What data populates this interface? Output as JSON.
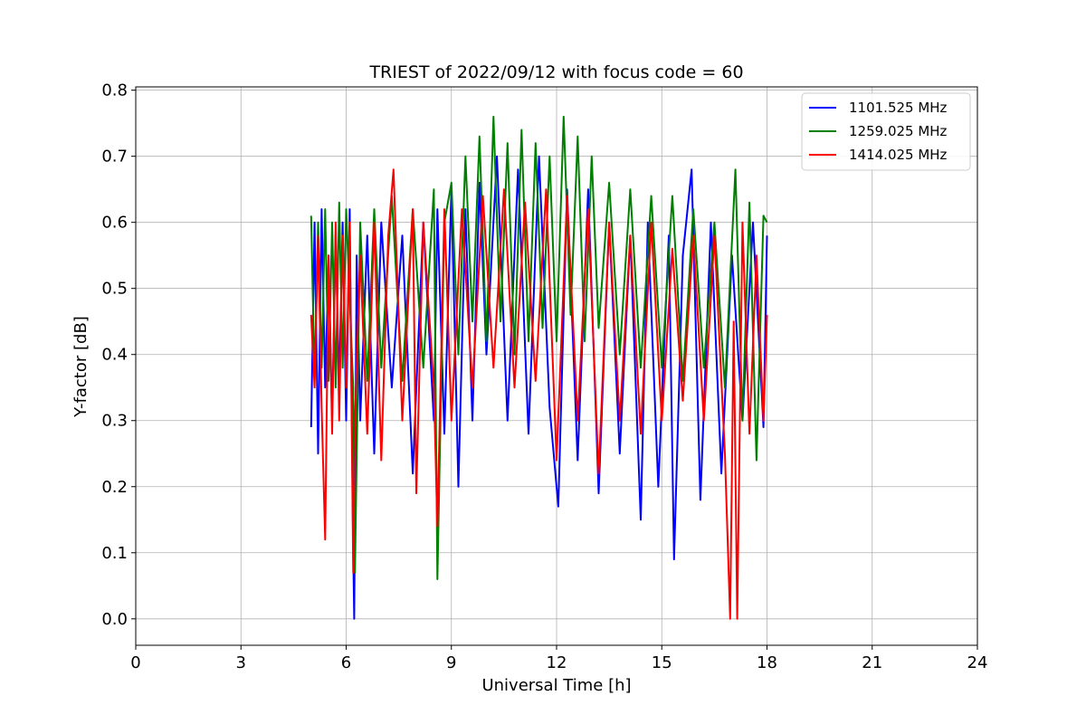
{
  "chart_data": {
    "type": "line",
    "title": "TRIEST of 2022/09/12 with focus code = 60",
    "xlabel": "Universal Time [h]",
    "ylabel": "Y-factor [dB]",
    "xlim": [
      0,
      24
    ],
    "ylim": [
      -0.04,
      0.805
    ],
    "xticks": [
      0,
      3,
      6,
      9,
      12,
      15,
      18,
      21,
      24
    ],
    "xtick_labels": [
      "0",
      "3",
      "6",
      "9",
      "12",
      "15",
      "18",
      "21",
      "24"
    ],
    "yticks": [
      0.0,
      0.1,
      0.2,
      0.3,
      0.4,
      0.5,
      0.6,
      0.7,
      0.8
    ],
    "ytick_labels": [
      "0.0",
      "0.1",
      "0.2",
      "0.3",
      "0.4",
      "0.5",
      "0.6",
      "0.7",
      "0.8"
    ],
    "grid": true,
    "legend_position": "top-right",
    "series": [
      {
        "name": "1101.525 MHz",
        "color": "#0000ff",
        "x": [
          5.0,
          5.1,
          5.2,
          5.3,
          5.4,
          5.5,
          5.6,
          5.7,
          5.8,
          5.9,
          6.0,
          6.1,
          6.2,
          6.23,
          6.3,
          6.4,
          6.6,
          6.8,
          7.0,
          7.3,
          7.6,
          7.9,
          8.2,
          8.5,
          8.6,
          8.8,
          9.0,
          9.2,
          9.4,
          9.6,
          9.8,
          10.0,
          10.3,
          10.6,
          10.9,
          11.2,
          11.5,
          11.8,
          12.05,
          12.3,
          12.6,
          12.9,
          13.2,
          13.5,
          13.8,
          14.1,
          14.4,
          14.6,
          14.9,
          15.2,
          15.35,
          15.6,
          15.85,
          16.1,
          16.4,
          16.7,
          17.0,
          17.3,
          17.6,
          17.9,
          18.0
        ],
        "y": [
          0.29,
          0.6,
          0.25,
          0.62,
          0.35,
          0.55,
          0.3,
          0.58,
          0.35,
          0.6,
          0.3,
          0.62,
          0.1,
          0.0,
          0.55,
          0.3,
          0.58,
          0.25,
          0.6,
          0.35,
          0.58,
          0.22,
          0.6,
          0.3,
          0.62,
          0.28,
          0.65,
          0.2,
          0.62,
          0.3,
          0.66,
          0.4,
          0.7,
          0.3,
          0.68,
          0.28,
          0.7,
          0.32,
          0.17,
          0.65,
          0.24,
          0.65,
          0.19,
          0.6,
          0.25,
          0.58,
          0.15,
          0.6,
          0.2,
          0.58,
          0.09,
          0.55,
          0.68,
          0.18,
          0.6,
          0.22,
          0.55,
          0.3,
          0.6,
          0.29,
          0.58
        ]
      },
      {
        "name": "1259.025 MHz",
        "color": "#008000",
        "x": [
          5.0,
          5.1,
          5.2,
          5.3,
          5.4,
          5.5,
          5.6,
          5.7,
          5.8,
          5.9,
          6.0,
          6.2,
          6.25,
          6.4,
          6.6,
          6.8,
          7.0,
          7.3,
          7.6,
          7.9,
          8.2,
          8.5,
          8.6,
          8.8,
          9.0,
          9.2,
          9.4,
          9.6,
          9.8,
          10.0,
          10.2,
          10.4,
          10.6,
          10.8,
          11.0,
          11.2,
          11.4,
          11.6,
          11.8,
          12.0,
          12.2,
          12.4,
          12.6,
          12.8,
          13.0,
          13.2,
          13.5,
          13.8,
          14.1,
          14.4,
          14.7,
          15.0,
          15.3,
          15.6,
          15.9,
          16.2,
          16.5,
          16.8,
          17.1,
          17.3,
          17.5,
          17.7,
          17.9,
          18.0
        ],
        "y": [
          0.61,
          0.36,
          0.6,
          0.38,
          0.62,
          0.36,
          0.6,
          0.35,
          0.63,
          0.38,
          0.62,
          0.35,
          0.07,
          0.6,
          0.36,
          0.62,
          0.38,
          0.64,
          0.36,
          0.62,
          0.38,
          0.65,
          0.06,
          0.6,
          0.66,
          0.4,
          0.7,
          0.45,
          0.73,
          0.42,
          0.76,
          0.45,
          0.72,
          0.4,
          0.74,
          0.42,
          0.72,
          0.44,
          0.7,
          0.42,
          0.76,
          0.46,
          0.73,
          0.42,
          0.7,
          0.44,
          0.66,
          0.4,
          0.65,
          0.38,
          0.64,
          0.38,
          0.64,
          0.36,
          0.62,
          0.38,
          0.6,
          0.35,
          0.68,
          0.3,
          0.63,
          0.24,
          0.61,
          0.6
        ]
      },
      {
        "name": "1414.025 MHz",
        "color": "#ff0000",
        "x": [
          5.0,
          5.1,
          5.2,
          5.3,
          5.4,
          5.5,
          5.6,
          5.7,
          5.8,
          5.9,
          6.0,
          6.1,
          6.2,
          6.25,
          6.4,
          6.6,
          6.8,
          7.0,
          7.2,
          7.35,
          7.6,
          7.9,
          8.0,
          8.2,
          8.5,
          8.6,
          8.8,
          9.0,
          9.3,
          9.6,
          9.9,
          10.2,
          10.5,
          10.8,
          11.1,
          11.4,
          11.7,
          12.0,
          12.3,
          12.6,
          12.9,
          13.2,
          13.5,
          13.8,
          14.1,
          14.4,
          14.7,
          15.0,
          15.3,
          15.6,
          15.9,
          16.2,
          16.5,
          16.8,
          16.95,
          17.05,
          17.15,
          17.3,
          17.5,
          17.7,
          17.9,
          18.0
        ],
        "y": [
          0.46,
          0.35,
          0.58,
          0.32,
          0.12,
          0.55,
          0.28,
          0.6,
          0.3,
          0.58,
          0.35,
          0.6,
          0.07,
          0.3,
          0.55,
          0.28,
          0.6,
          0.24,
          0.58,
          0.68,
          0.3,
          0.62,
          0.19,
          0.6,
          0.35,
          0.14,
          0.62,
          0.3,
          0.62,
          0.35,
          0.64,
          0.38,
          0.65,
          0.35,
          0.63,
          0.36,
          0.65,
          0.24,
          0.64,
          0.3,
          0.62,
          0.22,
          0.6,
          0.3,
          0.58,
          0.28,
          0.6,
          0.3,
          0.56,
          0.33,
          0.58,
          0.3,
          0.58,
          0.25,
          0.0,
          0.45,
          0.0,
          0.6,
          0.28,
          0.55,
          0.3,
          0.46
        ]
      }
    ]
  }
}
